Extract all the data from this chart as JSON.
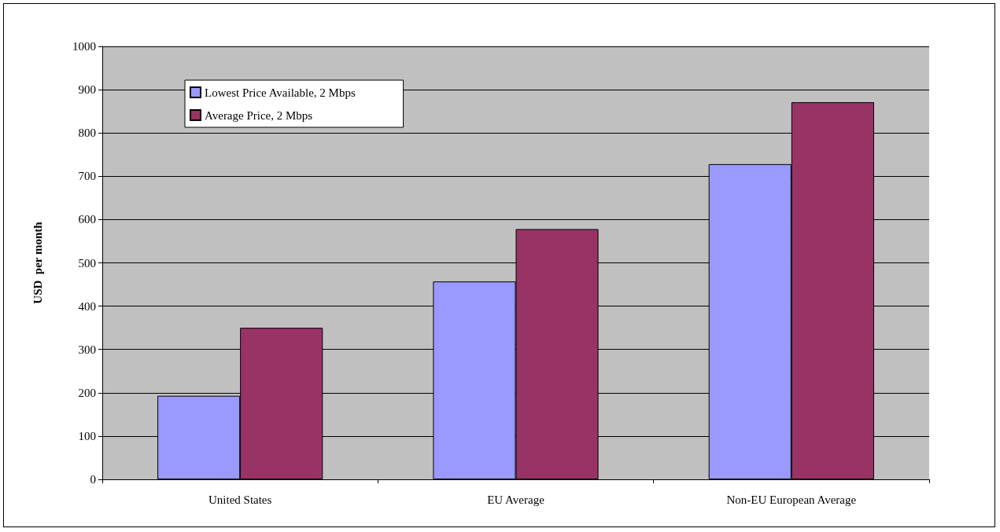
{
  "chart_data": {
    "type": "bar",
    "ylabel": "USD  per month",
    "categories": [
      "United States",
      "EU Average",
      "Non-EU European Average"
    ],
    "series": [
      {
        "name": "Lowest Price Available, 2 Mbps",
        "color": "#9999ff",
        "values": [
          193,
          457,
          728
        ]
      },
      {
        "name": "Average Price, 2 Mbps",
        "color": "#993366",
        "values": [
          350,
          578,
          871
        ]
      }
    ],
    "ylim": [
      0,
      1000
    ],
    "yticks": [
      0,
      100,
      200,
      300,
      400,
      500,
      600,
      700,
      800,
      900,
      1000
    ],
    "grid": "y",
    "legend": "top left"
  }
}
